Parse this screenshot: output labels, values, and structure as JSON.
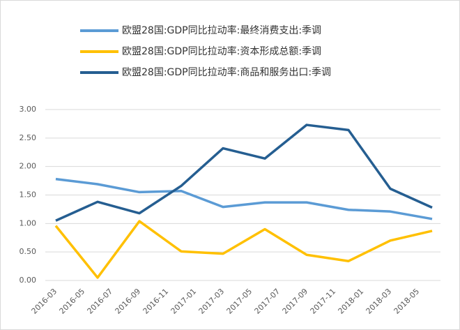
{
  "chart_data": {
    "type": "line",
    "x": [
      "2016-03",
      "2016-06",
      "2016-09",
      "2016-12",
      "2017-03",
      "2017-06",
      "2017-09",
      "2017-12",
      "2018-03",
      "2018-06"
    ],
    "xticks": [
      "2016-03",
      "2016-05",
      "2016-07",
      "2016-09",
      "2016-11",
      "2017-01",
      "2017-03",
      "2017-05",
      "2017-07",
      "2017-09",
      "2017-11",
      "2018-01",
      "2018-03",
      "2018-05"
    ],
    "series": [
      {
        "name": "欧盟28国:GDP同比拉动率:最终消费支出:季调",
        "color": "#5b9bd5",
        "values": [
          1.78,
          1.69,
          1.55,
          1.57,
          1.29,
          1.37,
          1.37,
          1.24,
          1.21,
          1.08
        ]
      },
      {
        "name": "欧盟28国:GDP同比拉动率:资本形成总额:季调",
        "color": "#ffc000",
        "values": [
          0.96,
          0.05,
          1.04,
          0.51,
          0.47,
          0.9,
          0.45,
          0.34,
          0.7,
          0.87
        ]
      },
      {
        "name": "欧盟28国:GDP同比拉动率:商品和服务出口:季调",
        "color": "#255e91",
        "values": [
          1.05,
          1.38,
          1.18,
          1.66,
          2.32,
          2.14,
          2.73,
          2.64,
          1.61,
          1.28
        ]
      }
    ],
    "ylim": [
      0,
      3
    ],
    "yticks": [
      {
        "value": 0,
        "label": "0.00"
      },
      {
        "value": 0.5,
        "label": "0.50"
      },
      {
        "value": 1,
        "label": "1.00"
      },
      {
        "value": 1.5,
        "label": "1.50"
      },
      {
        "value": 2,
        "label": "2.00"
      },
      {
        "value": 2.5,
        "label": "2.50"
      },
      {
        "value": 3,
        "label": "3.00"
      }
    ],
    "grid": true
  }
}
